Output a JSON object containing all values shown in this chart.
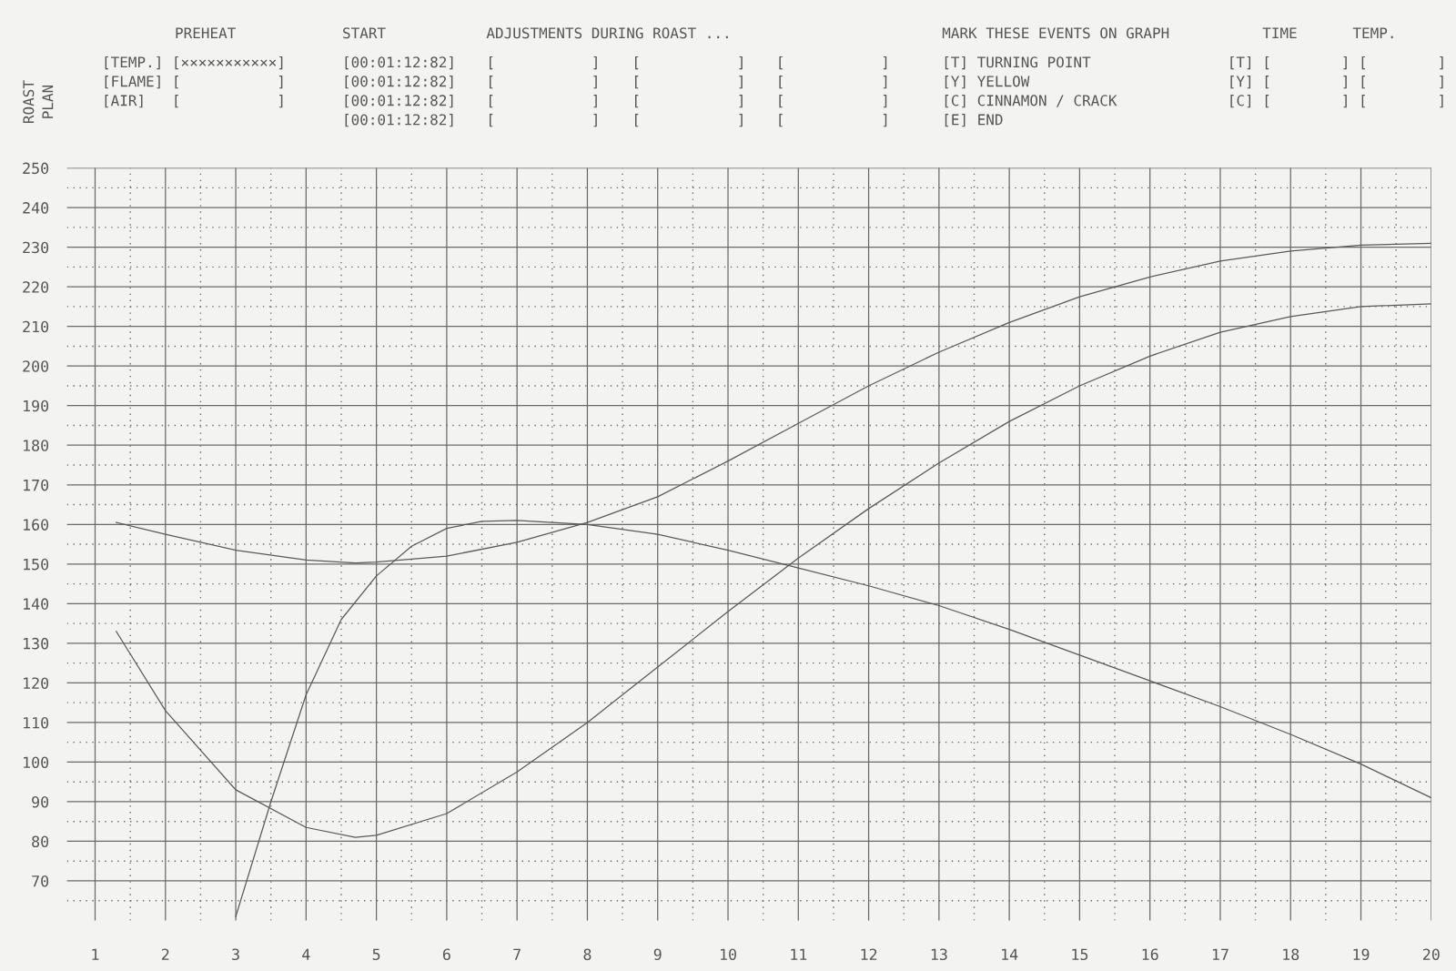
{
  "chart_data": {
    "type": "line",
    "xlim": [
      0.6,
      20
    ],
    "ylim": [
      60,
      250
    ],
    "xticks": [
      1,
      2,
      3,
      4,
      5,
      6,
      7,
      8,
      9,
      10,
      11,
      12,
      13,
      14,
      15,
      16,
      17,
      18,
      19,
      20
    ],
    "yticks": [
      70,
      80,
      90,
      100,
      110,
      120,
      130,
      140,
      150,
      160,
      170,
      180,
      190,
      200,
      210,
      220,
      230,
      240,
      250
    ],
    "grid": true,
    "marker": "none",
    "line_style": "solid",
    "series": [
      {
        "color": "#5a5a5a",
        "x": [
          1.3,
          2,
          3,
          4,
          4.7,
          5,
          6,
          7,
          8,
          9,
          10,
          11,
          12,
          13,
          14,
          15,
          16,
          17,
          18,
          19,
          20
        ],
        "values": [
          160.5,
          157.5,
          153.5,
          151,
          150.3,
          150.5,
          152,
          155.5,
          160.5,
          167,
          176,
          185.5,
          195,
          203.5,
          211,
          217.5,
          222.5,
          226.5,
          229,
          230.5,
          231
        ]
      },
      {
        "color": "#5a5a5a",
        "x": [
          1.3,
          2,
          3,
          4,
          4.7,
          5,
          6,
          7,
          8,
          9,
          10,
          11,
          12,
          13,
          14,
          15,
          16,
          17,
          18,
          19,
          20
        ],
        "values": [
          133,
          113,
          93,
          83.5,
          81,
          81.5,
          87,
          97.5,
          110,
          124,
          138,
          151.5,
          164,
          175.5,
          186,
          195,
          202.5,
          208.5,
          212.5,
          215,
          215.7
        ]
      },
      {
        "color": "#5a5a5a",
        "x": [
          3,
          3.5,
          4,
          4.5,
          5,
          5.5,
          6,
          6.5,
          7,
          8,
          9,
          10,
          11,
          12,
          13,
          14,
          15,
          16,
          17,
          18,
          19,
          20
        ],
        "values": [
          61,
          90,
          117,
          136,
          147,
          154.5,
          159,
          160.8,
          161,
          160,
          157.5,
          153.5,
          149,
          144.5,
          139.5,
          133.5,
          127,
          120.5,
          114,
          107,
          99.5,
          91
        ]
      }
    ],
    "annotations": [
      "ROAST\nPLAN",
      "PREHEAT",
      "[TEMP.] [×××××××××××]\n[FLAME] [           ]\n[AIR]   [           ]",
      "START",
      "[00:01:12:82]\n[00:01:12:82]\n[00:01:12:82]\n[00:01:12:82]",
      "ADJUSTMENTS DURING ROAST ...",
      "[           ]\n[           ]\n[           ]\n[           ]",
      "[           ]\n[           ]\n[           ]\n[           ]",
      "[           ]\n[           ]\n[           ]\n[           ]",
      "MARK THESE EVENTS ON GRAPH",
      "[T] TURNING POINT\n[Y] YELLOW\n[C] CINNAMON / CRACK\n[E] END",
      "TIME",
      "TEMP.",
      "[T] [        ] [        ]\n[Y] [        ] [        ]\n[C] [        ] [        ]"
    ]
  }
}
